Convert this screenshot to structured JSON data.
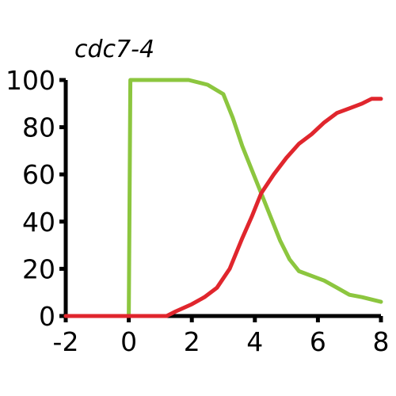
{
  "chart_data": {
    "type": "line",
    "title": "cdc7-4",
    "xlabel": "",
    "ylabel": "",
    "xlim": [
      -2,
      8
    ],
    "ylim": [
      0,
      100
    ],
    "xticks": [
      "-2",
      "0",
      "2",
      "4",
      "6",
      "8"
    ],
    "yticks": [
      "0",
      "20",
      "40",
      "60",
      "80",
      "100"
    ],
    "grid": false,
    "series": [
      {
        "color": "#8cc63f",
        "x": [
          -2,
          0,
          0.05,
          1.9,
          2.5,
          3.0,
          3.3,
          3.6,
          3.9,
          4.2,
          4.5,
          4.8,
          5.1,
          5.4,
          5.8,
          6.2,
          6.6,
          7.0,
          7.4,
          8.0
        ],
        "values": [
          0,
          0,
          100,
          100,
          98,
          94,
          84,
          72,
          62,
          52,
          42,
          32,
          24,
          19,
          17,
          15,
          12,
          9,
          8,
          6
        ]
      },
      {
        "color": "#e0262d",
        "x": [
          -2,
          1.2,
          1.5,
          2.0,
          2.4,
          2.8,
          3.2,
          3.6,
          3.9,
          4.2,
          4.6,
          5.0,
          5.4,
          5.8,
          6.2,
          6.6,
          7.0,
          7.4,
          7.7,
          8.0
        ],
        "values": [
          0,
          0,
          2,
          5,
          8,
          12,
          20,
          33,
          42,
          52,
          60,
          67,
          73,
          77,
          82,
          86,
          88,
          90,
          92,
          92
        ]
      }
    ]
  }
}
